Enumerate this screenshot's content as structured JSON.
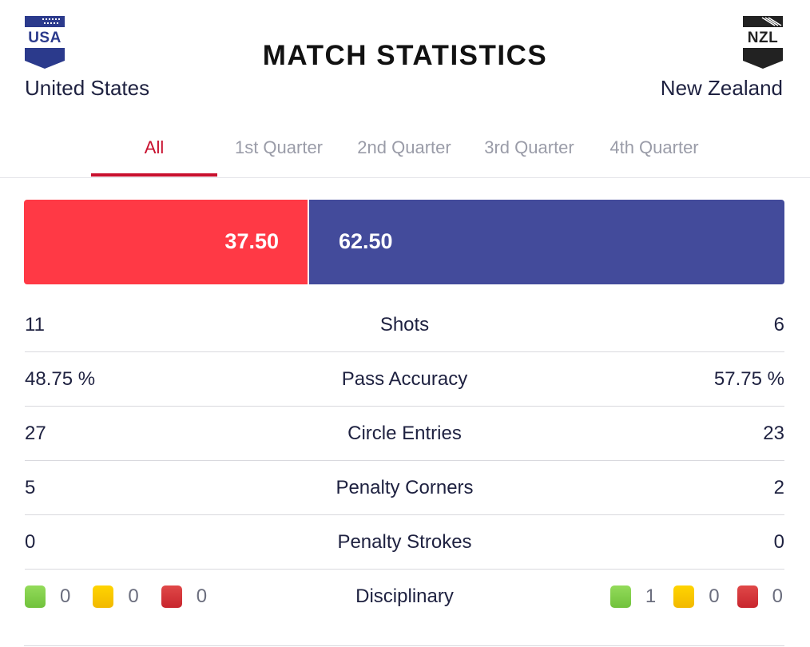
{
  "title": "MATCH STATISTICS",
  "home": {
    "code": "USA",
    "name": "United States",
    "crest_color": "#2b3a8c"
  },
  "away": {
    "code": "NZL",
    "name": "New Zealand",
    "crest_color": "#222222"
  },
  "tabs": [
    {
      "label": "All",
      "active": true
    },
    {
      "label": "1st Quarter",
      "active": false
    },
    {
      "label": "2nd Quarter",
      "active": false
    },
    {
      "label": "3rd Quarter",
      "active": false
    },
    {
      "label": "4th Quarter",
      "active": false
    }
  ],
  "possession": {
    "home": "37.50",
    "away": "62.50",
    "home_color": "#ff3945",
    "away_color": "#434b9b"
  },
  "stats": [
    {
      "label": "Shots",
      "home": "11",
      "away": "6"
    },
    {
      "label": "Pass Accuracy",
      "home": "48.75 %",
      "away": "57.75 %"
    },
    {
      "label": "Circle Entries",
      "home": "27",
      "away": "23"
    },
    {
      "label": "Penalty Corners",
      "home": "5",
      "away": "2"
    },
    {
      "label": "Penalty Strokes",
      "home": "0",
      "away": "0"
    }
  ],
  "disciplinary": {
    "label": "Disciplinary",
    "home": {
      "green": "0",
      "yellow": "0",
      "red": "0"
    },
    "away": {
      "green": "1",
      "yellow": "0",
      "red": "0"
    }
  },
  "colors": {
    "accent": "#c8102e",
    "green_card": "#71c23c",
    "yellow_card": "#f2b900",
    "red_card": "#c8262e"
  }
}
